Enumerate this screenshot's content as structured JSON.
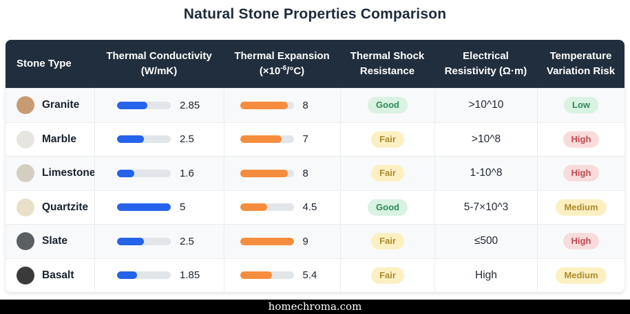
{
  "page": {
    "title": "Natural Stone Properties Comparison"
  },
  "footer": {
    "site": "homechroma.com"
  },
  "colors": {
    "header_bg": "#212e3e",
    "accent_blue": "#2563eb",
    "accent_orange": "#f68d3e",
    "badge_green_bg": "#d9f2e2",
    "badge_green_text": "#2c8a5b",
    "badge_yellow_bg": "#fcf0c2",
    "badge_yellow_text": "#ab8a2e",
    "badge_red_bg": "#f8dcdc",
    "badge_red_text": "#c04852"
  },
  "table": {
    "columns": [
      {
        "line1": "Stone Type",
        "line2": ""
      },
      {
        "line1": "Thermal Conductivity",
        "line2": "(W/mK)"
      },
      {
        "line1": "Thermal Expansion",
        "unit_prefix": "(×10",
        "unit_sup": "-6",
        "unit_suffix": "/°C)"
      },
      {
        "line1": "Thermal Shock",
        "line2": "Resistance"
      },
      {
        "line1": "Electrical",
        "line2": "Resistivity (Ω·m)"
      },
      {
        "line1": "Temperature",
        "line2": "Variation Risk"
      }
    ],
    "rows": [
      {
        "stone": "Granite",
        "swatch": "#c99b72",
        "conductivity": "2.85",
        "conductivity_pct": 57,
        "expansion": "8",
        "expansion_pct": 89,
        "shock": "Good",
        "shock_type": "green",
        "resistivity": ">10^10",
        "risk": "Low",
        "risk_type": "green"
      },
      {
        "stone": "Marble",
        "swatch": "#e7e5e2",
        "conductivity": "2.5",
        "conductivity_pct": 50,
        "expansion": "7",
        "expansion_pct": 78,
        "shock": "Fair",
        "shock_type": "yellow",
        "resistivity": ">10^8",
        "risk": "High",
        "risk_type": "red"
      },
      {
        "stone": "Limestone",
        "swatch": "#d3cec0",
        "conductivity": "1.6",
        "conductivity_pct": 32,
        "expansion": "8",
        "expansion_pct": 89,
        "shock": "Fair",
        "shock_type": "yellow",
        "resistivity": "1-10^8",
        "risk": "High",
        "risk_type": "red"
      },
      {
        "stone": "Quartzite",
        "swatch": "#eadfc8",
        "conductivity": "5",
        "conductivity_pct": 100,
        "expansion": "4.5",
        "expansion_pct": 50,
        "shock": "Good",
        "shock_type": "green",
        "resistivity": "5-7×10^3",
        "risk": "Medium",
        "risk_type": "yellow"
      },
      {
        "stone": "Slate",
        "swatch": "#5b5e62",
        "conductivity": "2.5",
        "conductivity_pct": 50,
        "expansion": "9",
        "expansion_pct": 100,
        "shock": "Fair",
        "shock_type": "yellow",
        "resistivity": "≤500",
        "risk": "High",
        "risk_type": "red"
      },
      {
        "stone": "Basalt",
        "swatch": "#3a3a3a",
        "conductivity": "1.85",
        "conductivity_pct": 37,
        "expansion": "5.4",
        "expansion_pct": 60,
        "shock": "Fair",
        "shock_type": "yellow",
        "resistivity": "High",
        "risk": "Medium",
        "risk_type": "yellow"
      }
    ]
  },
  "chart_data": {
    "type": "table",
    "title": "Natural Stone Properties Comparison",
    "categories": [
      "Granite",
      "Marble",
      "Limestone",
      "Quartzite",
      "Slate",
      "Basalt"
    ],
    "series": [
      {
        "name": "Thermal Conductivity (W/mK)",
        "type": "bar",
        "color": "#2563eb",
        "max": 5,
        "values": [
          2.85,
          2.5,
          1.6,
          5,
          2.5,
          1.85
        ]
      },
      {
        "name": "Thermal Expansion (×10^-6/°C)",
        "type": "bar",
        "color": "#f68d3e",
        "max": 9,
        "values": [
          8,
          7,
          8,
          4.5,
          9,
          5.4
        ]
      },
      {
        "name": "Thermal Shock Resistance",
        "type": "badge",
        "values": [
          "Good",
          "Fair",
          "Fair",
          "Good",
          "Fair",
          "Fair"
        ]
      },
      {
        "name": "Electrical Resistivity (Ω·m)",
        "type": "text",
        "values": [
          ">10^10",
          ">10^8",
          "1-10^8",
          "5-7×10^3",
          "≤500",
          "High"
        ]
      },
      {
        "name": "Temperature Variation Risk",
        "type": "badge",
        "values": [
          "Low",
          "High",
          "High",
          "Medium",
          "High",
          "Medium"
        ]
      }
    ]
  }
}
